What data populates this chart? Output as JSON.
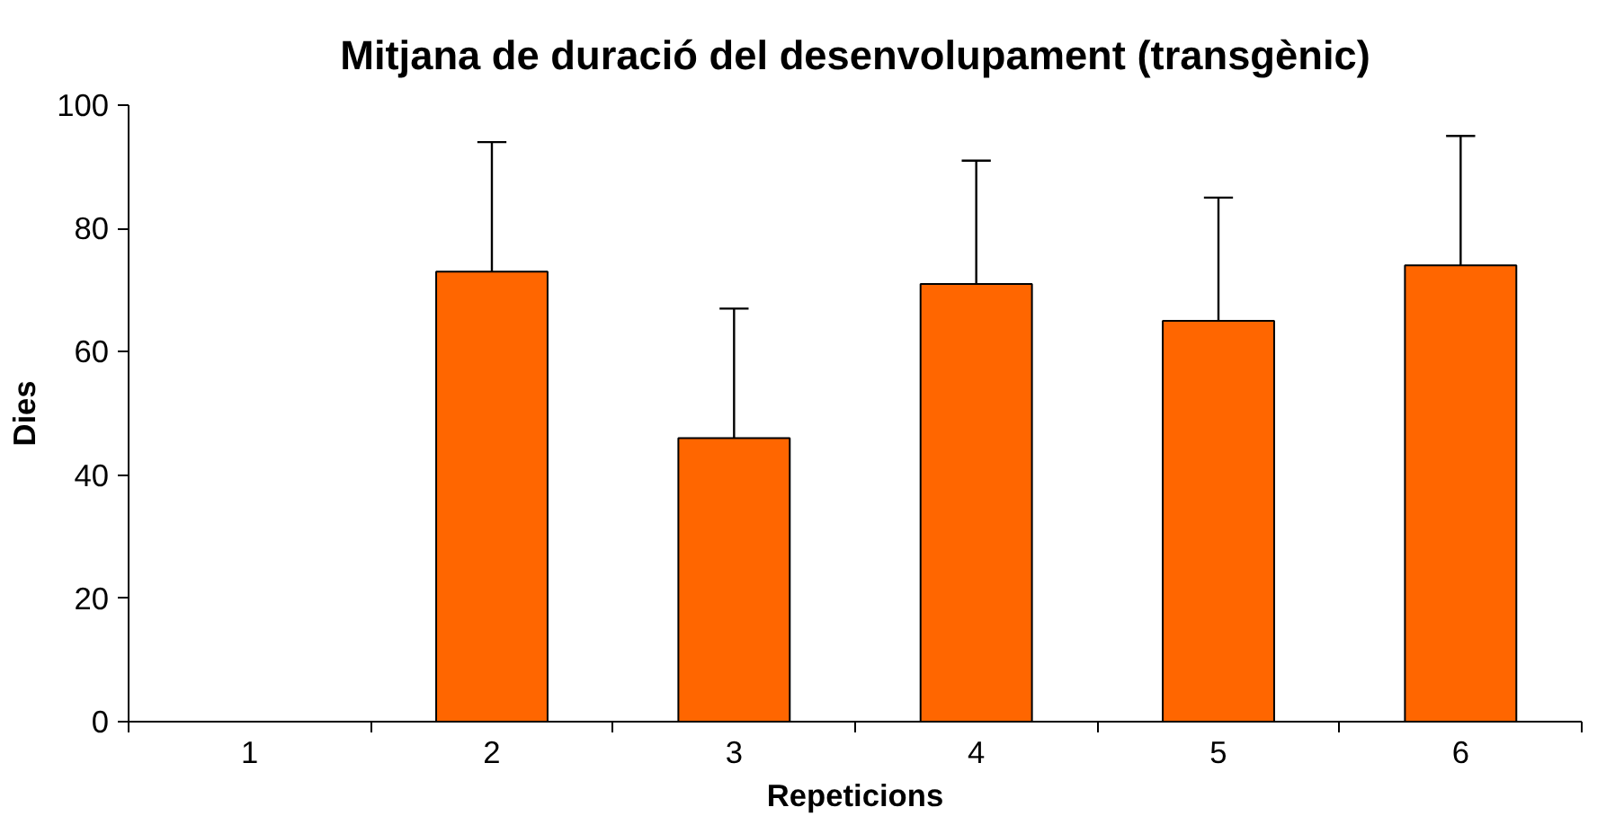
{
  "chart_data": {
    "type": "bar",
    "title": "Mitjana de duració del desenvolupament (transgènic)",
    "xlabel": "Repeticions",
    "ylabel": "Dies",
    "categories": [
      "1",
      "2",
      "3",
      "4",
      "5",
      "6"
    ],
    "values": [
      null,
      73,
      46,
      71,
      65,
      74
    ],
    "errors": [
      null,
      [
        73,
        94
      ],
      [
        46,
        67
      ],
      [
        71,
        91
      ],
      [
        65,
        85
      ],
      [
        74,
        95
      ]
    ],
    "color": "#ff6600",
    "ylim": [
      0,
      100
    ],
    "yticks": [
      0,
      20,
      40,
      60,
      80,
      100
    ],
    "grid": false
  }
}
